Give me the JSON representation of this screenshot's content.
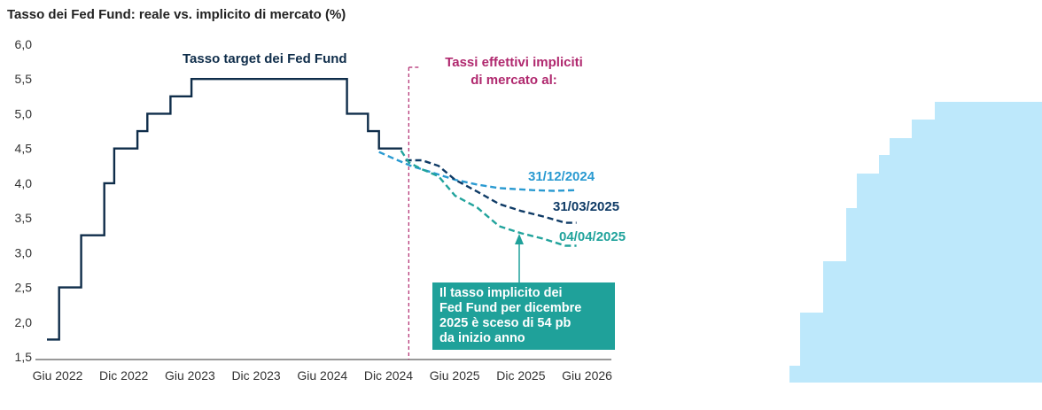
{
  "title": "Tasso dei Fed Fund: reale vs. implicito di mercato (%)",
  "colors": {
    "target": "#0f2d4a",
    "dec2024": "#2a9ad1",
    "mar2025": "#0f3b66",
    "apr2025": "#21a39c",
    "divider": "#b0286e",
    "callout_bg": "#1fa19a",
    "right_shape": "#bde8fb"
  },
  "annotations": {
    "target_label": "Tasso target dei Fed Fund",
    "implied_line1": "Tassi effettivi impliciti",
    "implied_line2": "di mercato al:",
    "callout": [
      "Il tasso implicito dei",
      "Fed Fund per dicembre",
      "2025 è sceso di 54 pb",
      "da inizio anno"
    ]
  },
  "chart_data": {
    "type": "line",
    "title": "Tasso dei Fed Fund: reale vs. implicito di mercato (%)",
    "x_ticks": [
      "Giu 2022",
      "Dic 2022",
      "Giu 2023",
      "Dic 2023",
      "Giu 2024",
      "Dic 2024",
      "Giu 2025",
      "Dic 2025",
      "Giu 2026"
    ],
    "y_ticks": [
      "6,0",
      "5,5",
      "5,0",
      "4,5",
      "4,0",
      "3,5",
      "3,0",
      "2,5",
      "2,0",
      "1,5"
    ],
    "ylim": [
      1.5,
      6.0
    ],
    "x_unit": "mesi da Giu 2022",
    "xlim": [
      0,
      49
    ],
    "grid": false,
    "divider_x": 32.8,
    "series": [
      {
        "name": "Tasso target dei Fed Fund",
        "style": "step",
        "points": [
          [
            0,
            1.75
          ],
          [
            1.1,
            1.75
          ],
          [
            1.1,
            2.5
          ],
          [
            3.1,
            2.5
          ],
          [
            3.1,
            3.25
          ],
          [
            5.2,
            3.25
          ],
          [
            5.2,
            4.0
          ],
          [
            6.1,
            4.0
          ],
          [
            6.1,
            4.5
          ],
          [
            8.2,
            4.5
          ],
          [
            8.2,
            4.75
          ],
          [
            9.1,
            4.75
          ],
          [
            9.1,
            5.0
          ],
          [
            11.2,
            5.0
          ],
          [
            11.2,
            5.25
          ],
          [
            13.1,
            5.25
          ],
          [
            13.1,
            5.5
          ],
          [
            27.2,
            5.5
          ],
          [
            27.2,
            5.0
          ],
          [
            29.1,
            5.0
          ],
          [
            29.1,
            4.75
          ],
          [
            30.1,
            4.75
          ],
          [
            30.1,
            4.5
          ],
          [
            32.2,
            4.5
          ]
        ]
      },
      {
        "name": "31/12/2024",
        "style": "dashed",
        "points": [
          [
            30.1,
            4.45
          ],
          [
            31.5,
            4.35
          ],
          [
            33,
            4.25
          ],
          [
            35,
            4.15
          ],
          [
            37,
            4.05
          ],
          [
            39,
            3.98
          ],
          [
            41,
            3.93
          ],
          [
            44,
            3.9
          ],
          [
            46,
            3.89
          ],
          [
            48,
            3.9
          ]
        ]
      },
      {
        "name": "31/03/2025",
        "style": "dashed",
        "points": [
          [
            32.5,
            4.33
          ],
          [
            34,
            4.33
          ],
          [
            35.5,
            4.25
          ],
          [
            37,
            4.05
          ],
          [
            39,
            3.88
          ],
          [
            41,
            3.7
          ],
          [
            43,
            3.6
          ],
          [
            45,
            3.52
          ],
          [
            47,
            3.43
          ],
          [
            48,
            3.43
          ]
        ]
      },
      {
        "name": "04/04/2025",
        "style": "dashed",
        "points": [
          [
            32.1,
            4.47
          ],
          [
            32.8,
            4.3
          ],
          [
            34,
            4.2
          ],
          [
            35.5,
            4.1
          ],
          [
            37,
            3.82
          ],
          [
            39,
            3.65
          ],
          [
            41,
            3.38
          ],
          [
            43,
            3.28
          ],
          [
            45,
            3.2
          ],
          [
            47,
            3.1
          ],
          [
            48,
            3.1
          ]
        ]
      }
    ]
  }
}
